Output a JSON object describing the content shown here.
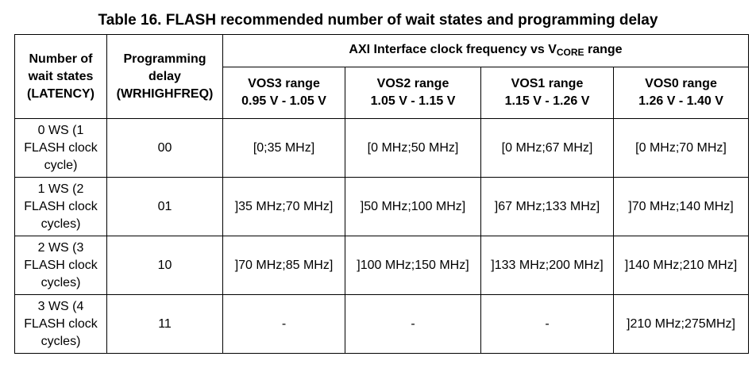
{
  "title": "Table 16. FLASH recommended number of wait states and programming delay",
  "headers": {
    "latency_l1": "Number of",
    "latency_l2": "wait states",
    "latency_l3": "(LATENCY)",
    "delay_l1": "Programming",
    "delay_l2": "delay",
    "delay_l3": "(WRHIGHFREQ)",
    "axi_pre": "AXI Interface clock frequency vs V",
    "axi_sub": "CORE",
    "axi_post": " range",
    "vos": [
      {
        "name": "VOS3 range",
        "range": "0.95 V - 1.05 V"
      },
      {
        "name": "VOS2 range",
        "range": "1.05 V - 1.15 V"
      },
      {
        "name": "VOS1 range",
        "range": "1.15 V - 1.26 V"
      },
      {
        "name": "VOS0 range",
        "range": "1.26 V - 1.40 V"
      }
    ]
  },
  "rows": [
    {
      "ws": [
        "0 WS (1",
        "FLASH clock",
        "cycle)"
      ],
      "delay": "00",
      "vals": [
        "[0;35 MHz]",
        "[0 MHz;50 MHz]",
        "[0 MHz;67 MHz]",
        "[0 MHz;70 MHz]"
      ]
    },
    {
      "ws": [
        "1 WS (2",
        "FLASH clock",
        "cycles)"
      ],
      "delay": "01",
      "vals": [
        "]35 MHz;70 MHz]",
        "]50 MHz;100 MHz]",
        "]67 MHz;133 MHz]",
        "]70 MHz;140 MHz]"
      ]
    },
    {
      "ws": [
        "2 WS (3",
        "FLASH clock",
        "cycles)"
      ],
      "delay": "10",
      "vals": [
        "]70 MHz;85 MHz]",
        "]100 MHz;150 MHz]",
        "]133 MHz;200 MHz]",
        "]140 MHz;210 MHz]"
      ]
    },
    {
      "ws": [
        "3 WS (4",
        "FLASH clock",
        "cycles)"
      ],
      "delay": "11",
      "vals": [
        "-",
        "-",
        "-",
        "]210 MHz;275MHz]"
      ]
    }
  ]
}
